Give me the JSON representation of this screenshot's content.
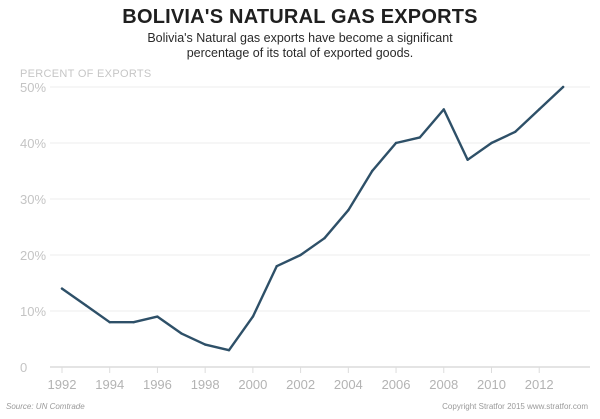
{
  "title": "BOLIVIA'S NATURAL GAS EXPORTS",
  "subtitle": "Bolivia's Natural gas exports have become a significant percentage of its total of exported goods.",
  "source": "Source: UN Comtrade",
  "copyright": "Copyright Stratfor 2015   www.stratfor.com",
  "colors": {
    "line": "#2e5068",
    "grid": "#ececec",
    "axis": "#dcdcdc"
  },
  "chart_data": {
    "type": "line",
    "title": "BOLIVIA'S NATURAL GAS EXPORTS",
    "ylabel": "PERCENT OF EXPORTS",
    "xlabel": "",
    "xlim": [
      1992,
      2013.5
    ],
    "ylim": [
      0,
      50
    ],
    "x_ticks": [
      1992,
      1994,
      1996,
      1998,
      2000,
      2002,
      2004,
      2006,
      2008,
      2010,
      2012
    ],
    "y_ticks": [
      {
        "value": 0,
        "label": "0"
      },
      {
        "value": 10,
        "label": "10%"
      },
      {
        "value": 20,
        "label": "20%"
      },
      {
        "value": 30,
        "label": "30%"
      },
      {
        "value": 40,
        "label": "40%"
      },
      {
        "value": 50,
        "label": "50%"
      }
    ],
    "grid": "horizontal",
    "series": [
      {
        "x": [
          1992,
          1993,
          1994,
          1995,
          1996,
          1997,
          1998,
          1999,
          2000,
          2001,
          2002,
          2003,
          2004,
          2005,
          2006,
          2007,
          2008,
          2009,
          2010,
          2011,
          2012,
          2013
        ],
        "values": [
          14,
          11,
          8,
          8,
          9,
          6,
          4,
          3,
          9,
          18,
          20,
          23,
          28,
          35,
          40,
          41,
          46,
          37,
          40,
          42,
          46,
          50
        ]
      }
    ]
  }
}
